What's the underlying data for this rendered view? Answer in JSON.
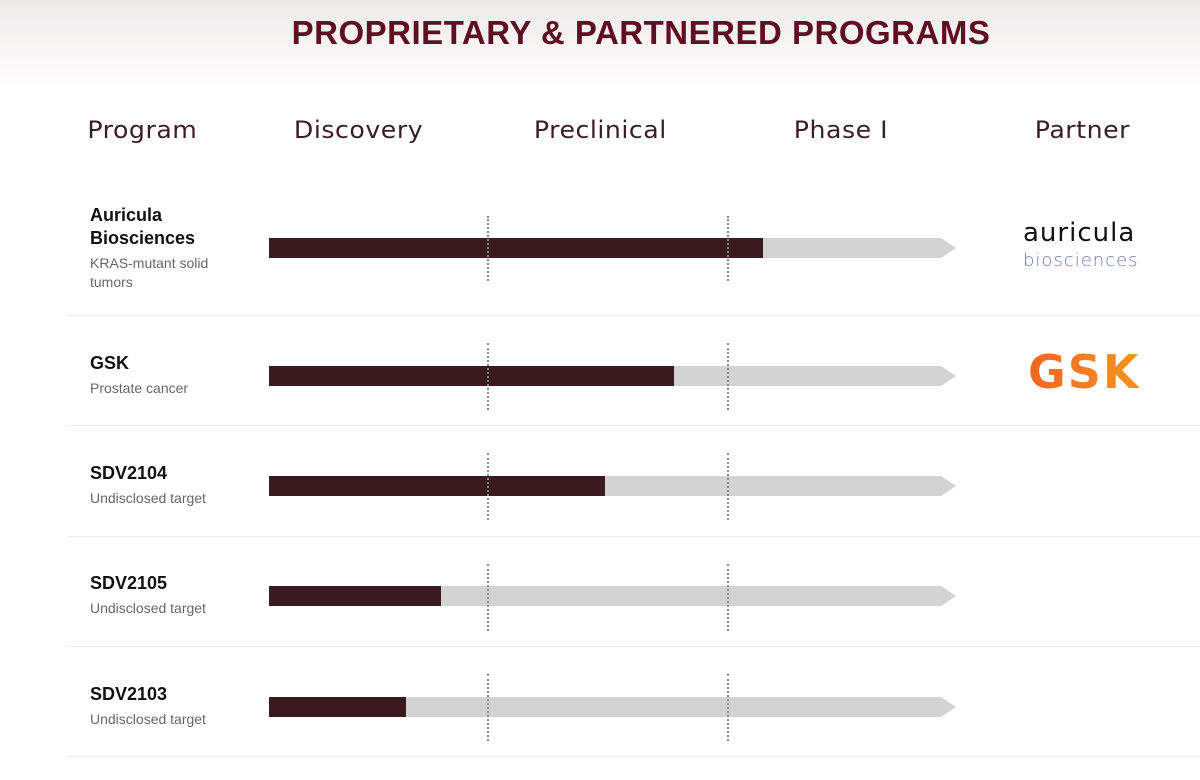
{
  "title": "PROPRIETARY & PARTNERED PROGRAMS",
  "chart_data": {
    "type": "bar",
    "orientation": "horizontal",
    "stages": [
      "Discovery",
      "Preclinical",
      "Phase I"
    ],
    "columns": {
      "program": "Program",
      "partner": "Partner"
    },
    "programs": [
      {
        "name": "Auricula Biosciences",
        "subtitle": "KRAS-mutant solid tumors",
        "progress": 0.72,
        "partner_logo": {
          "line1": "auricula",
          "line2": "biosciences"
        }
      },
      {
        "name": "GSK",
        "subtitle": "Prostate cancer",
        "progress": 0.59,
        "partner_logo": {
          "line1": "GSK"
        }
      },
      {
        "name": "SDV2104",
        "subtitle": "Undisclosed target",
        "progress": 0.49
      },
      {
        "name": "SDV2105",
        "subtitle": "Undisclosed target",
        "progress": 0.25
      },
      {
        "name": "SDV2103",
        "subtitle": "Undisclosed target",
        "progress": 0.2
      }
    ],
    "colors": {
      "fill": "#3a1a1f",
      "track": "#d3d3d3",
      "title": "#5e0f22"
    }
  }
}
